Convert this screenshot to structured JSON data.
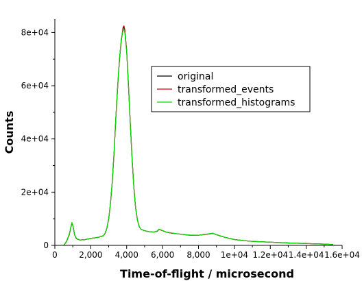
{
  "chart_data": {
    "type": "line",
    "title": "",
    "xlabel": "Time-of-flight / microsecond",
    "ylabel": "Counts",
    "xlim": [
      0,
      16000
    ],
    "ylim": [
      0,
      85000
    ],
    "grid": false,
    "legend_position": "top-right",
    "x_ticks": [
      {
        "value": 0,
        "label": "0"
      },
      {
        "value": 2000,
        "label": "2,000"
      },
      {
        "value": 4000,
        "label": "4,000"
      },
      {
        "value": 6000,
        "label": "6,000"
      },
      {
        "value": 8000,
        "label": "8,000"
      },
      {
        "value": 10000,
        "label": "1e+04"
      },
      {
        "value": 12000,
        "label": "1.2e+04"
      },
      {
        "value": 14000,
        "label": "1.4e+04"
      },
      {
        "value": 16000,
        "label": "1.6e+04"
      }
    ],
    "y_ticks": [
      {
        "value": 0,
        "label": "0"
      },
      {
        "value": 20000,
        "label": "2e+04"
      },
      {
        "value": 40000,
        "label": "4e+04"
      },
      {
        "value": 60000,
        "label": "6e+04"
      },
      {
        "value": 80000,
        "label": "8e+04"
      }
    ],
    "x": [
      500,
      650,
      800,
      900,
      950,
      1000,
      1100,
      1200,
      1400,
      1700,
      2000,
      2400,
      2700,
      2800,
      2900,
      3000,
      3100,
      3200,
      3300,
      3400,
      3500,
      3600,
      3700,
      3800,
      3850,
      3900,
      4000,
      4100,
      4200,
      4300,
      4400,
      4500,
      4600,
      4700,
      4800,
      5000,
      5200,
      5500,
      5700,
      5800,
      6000,
      6200,
      6500,
      7000,
      7500,
      8000,
      8500,
      8800,
      9000,
      9500,
      10000,
      10500,
      11000,
      12000,
      13000,
      14000,
      15000,
      15500
    ],
    "series": [
      {
        "name": "original",
        "color": "#000000",
        "values": [
          0,
          1500,
          4000,
          7000,
          8500,
          7500,
          4000,
          2500,
          2000,
          2200,
          2600,
          3000,
          3600,
          4500,
          6500,
          10000,
          16000,
          24000,
          35000,
          48000,
          60000,
          70000,
          77000,
          81500,
          82000,
          80500,
          73000,
          60000,
          46000,
          33000,
          22000,
          14000,
          9500,
          7000,
          6000,
          5500,
          5200,
          5000,
          5300,
          6000,
          5500,
          5000,
          4600,
          4200,
          3800,
          3800,
          4200,
          4500,
          4000,
          3000,
          2200,
          1800,
          1500,
          1200,
          900,
          700,
          500,
          300
        ]
      },
      {
        "name": "transformed_events",
        "color": "#cc0000",
        "values": [
          0,
          1500,
          4000,
          7000,
          8500,
          7500,
          4000,
          2500,
          2000,
          2200,
          2600,
          3000,
          3600,
          4500,
          6500,
          10000,
          16000,
          24000,
          35000,
          48000,
          60000,
          70000,
          77000,
          82000,
          82500,
          81000,
          73000,
          60000,
          46000,
          33000,
          22000,
          14000,
          9500,
          7000,
          6000,
          5500,
          5200,
          5000,
          5300,
          6000,
          5500,
          5000,
          4600,
          4200,
          3800,
          3800,
          4200,
          4500,
          4000,
          3000,
          2200,
          1800,
          1500,
          1200,
          900,
          700,
          500,
          300
        ]
      },
      {
        "name": "transformed_histograms",
        "color": "#00dd00",
        "values": [
          0,
          1600,
          4200,
          7200,
          8600,
          7600,
          4100,
          2600,
          2000,
          2200,
          2600,
          3000,
          3600,
          4600,
          6600,
          10200,
          16200,
          24300,
          35400,
          48500,
          60500,
          70500,
          77500,
          80800,
          81200,
          79800,
          72500,
          59500,
          45500,
          32500,
          21600,
          13800,
          9400,
          7000,
          6000,
          5500,
          5200,
          5000,
          5400,
          6100,
          5600,
          5000,
          4700,
          4200,
          3900,
          3800,
          4300,
          4600,
          4000,
          3000,
          2200,
          1800,
          1500,
          1200,
          900,
          700,
          500,
          300
        ]
      }
    ]
  }
}
